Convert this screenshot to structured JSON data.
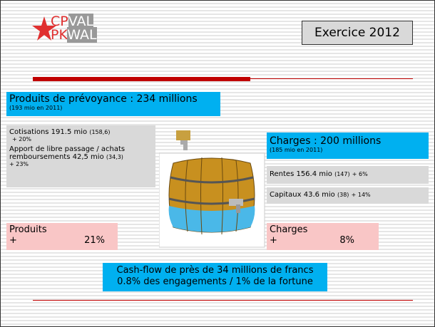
{
  "logo": {
    "line1a": "CP",
    "line1b": "VAL",
    "line2a": "PK",
    "line2b": "WAL"
  },
  "header": {
    "title": "Exercice 2012"
  },
  "produits": {
    "title": "Produits de prévoyance : 234 millions",
    "note": "(193 mio en 2011)",
    "items": [
      {
        "label": "Cotisations 191.5 mio",
        "prev": "(158,6)",
        "change": "+ 20%"
      },
      {
        "label": "Apport de libre passage / achats remboursements 42,5 mio",
        "prev": "(34,3)",
        "change": "+ 23%"
      }
    ],
    "summary": {
      "label": "Produits",
      "sign": "+",
      "change": "21%"
    }
  },
  "charges": {
    "title": "Charges : 200 millions",
    "note": "(185 mio en 2011)",
    "items": [
      {
        "label": "Rentes 156.4 mio",
        "prev": "(147)",
        "change": "+  6%"
      },
      {
        "label": "Capitaux 43.6 mio",
        "prev": "(38)",
        "change": "+ 14%"
      }
    ],
    "summary": {
      "label": "Charges",
      "sign": "+",
      "change": "8%"
    }
  },
  "footer": {
    "line1": "Cash-flow de près de 34 millions de francs",
    "line2": "0.8% des engagements / 1% de la fortune"
  }
}
